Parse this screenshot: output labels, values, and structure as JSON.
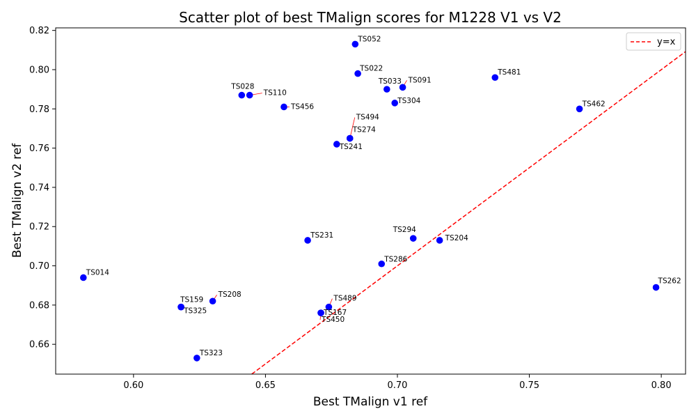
{
  "chart_data": {
    "type": "scatter",
    "title": "Scatter plot of best TMalign scores for M1228 V1 vs V2",
    "xlabel": "Best TMalign v1 ref",
    "ylabel": "Best TMalign v2 ref",
    "xlim": [
      0.5705,
      0.8092
    ],
    "ylim": [
      0.6448,
      0.8213
    ],
    "xticks": [
      0.6,
      0.65,
      0.7,
      0.75,
      0.8
    ],
    "xtick_labels": [
      "0.60",
      "0.65",
      "0.70",
      "0.75",
      "0.80"
    ],
    "yticks": [
      0.66,
      0.68,
      0.7,
      0.72,
      0.74,
      0.76,
      0.78,
      0.8,
      0.82
    ],
    "ytick_labels": [
      "0.66",
      "0.68",
      "0.70",
      "0.72",
      "0.74",
      "0.76",
      "0.78",
      "0.80",
      "0.82"
    ],
    "point_color": "#0000ff",
    "reference_line": {
      "label": "y=x",
      "color": "#ff0000",
      "style": "dashed"
    },
    "legend": {
      "position": "top-right",
      "entries": [
        "y=x"
      ]
    },
    "grid": false,
    "points": [
      {
        "label": "TS052",
        "x": 0.684,
        "y": 0.813
      },
      {
        "label": "TS022",
        "x": 0.685,
        "y": 0.798
      },
      {
        "label": "TS481",
        "x": 0.737,
        "y": 0.796
      },
      {
        "label": "TS091",
        "x": 0.702,
        "y": 0.791
      },
      {
        "label": "TS033",
        "x": 0.696,
        "y": 0.79
      },
      {
        "label": "TS028",
        "x": 0.641,
        "y": 0.787
      },
      {
        "label": "TS110",
        "x": 0.644,
        "y": 0.787
      },
      {
        "label": "TS304",
        "x": 0.699,
        "y": 0.783
      },
      {
        "label": "TS456",
        "x": 0.657,
        "y": 0.781
      },
      {
        "label": "TS462",
        "x": 0.769,
        "y": 0.78
      },
      {
        "label": "TS494",
        "x": 0.682,
        "y": 0.765
      },
      {
        "label": "TS274",
        "x": 0.682,
        "y": 0.765
      },
      {
        "label": "TS241",
        "x": 0.677,
        "y": 0.762
      },
      {
        "label": "TS294",
        "x": 0.706,
        "y": 0.714
      },
      {
        "label": "TS231",
        "x": 0.666,
        "y": 0.713
      },
      {
        "label": "TS204",
        "x": 0.716,
        "y": 0.713
      },
      {
        "label": "TS286",
        "x": 0.694,
        "y": 0.701
      },
      {
        "label": "TS014",
        "x": 0.581,
        "y": 0.694
      },
      {
        "label": "TS262",
        "x": 0.798,
        "y": 0.689
      },
      {
        "label": "TS208",
        "x": 0.63,
        "y": 0.682
      },
      {
        "label": "TS159",
        "x": 0.618,
        "y": 0.679
      },
      {
        "label": "TS325",
        "x": 0.618,
        "y": 0.679
      },
      {
        "label": "TS489",
        "x": 0.674,
        "y": 0.679
      },
      {
        "label": "TS167",
        "x": 0.671,
        "y": 0.676
      },
      {
        "label": "TS450",
        "x": 0.671,
        "y": 0.676
      },
      {
        "label": "TS323",
        "x": 0.624,
        "y": 0.653
      }
    ]
  }
}
